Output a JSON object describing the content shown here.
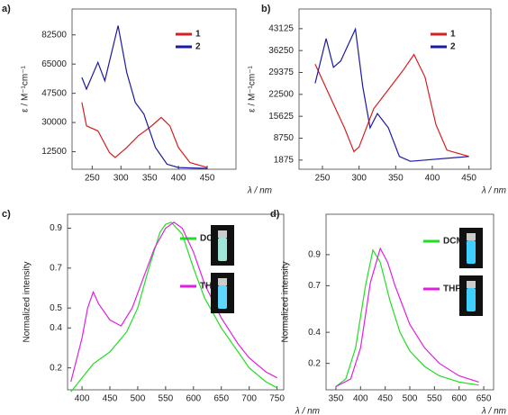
{
  "chart_data": [
    {
      "type": "line",
      "panel_label": "a)",
      "y_label": "ε / M⁻¹cm⁻¹",
      "x_label": "λ / nm",
      "xlim": [
        215,
        500
      ],
      "xticks": [
        250,
        300,
        350,
        400,
        450
      ],
      "ylim": [
        2000,
        98000
      ],
      "yticks": [
        12500,
        30000,
        47500,
        65000,
        82500
      ],
      "series": [
        {
          "name": "1",
          "color": "#d42020",
          "x": [
            232,
            240,
            260,
            280,
            290,
            310,
            330,
            350,
            370,
            385,
            400,
            420,
            450
          ],
          "values": [
            42000,
            28000,
            25000,
            12000,
            9000,
            15000,
            22000,
            27000,
            33000,
            28000,
            15000,
            6000,
            3000
          ]
        },
        {
          "name": "2",
          "color": "#1a1aa0",
          "x": [
            232,
            240,
            260,
            272,
            295,
            310,
            325,
            340,
            360,
            380,
            400,
            450
          ],
          "values": [
            57000,
            50000,
            66000,
            55000,
            88000,
            60000,
            42000,
            35000,
            15000,
            5000,
            3000,
            2500
          ]
        }
      ]
    },
    {
      "type": "line",
      "panel_label": "b)",
      "y_label": "ε / M⁻¹cm⁻¹",
      "x_label": "λ / nm",
      "xlim": [
        218,
        480
      ],
      "xticks": [
        250,
        300,
        350,
        400,
        450
      ],
      "ylim": [
        -1000,
        49300
      ],
      "yticks": [
        1875,
        8750,
        15625,
        22500,
        29375,
        36250,
        43125
      ],
      "series": [
        {
          "name": "1",
          "color": "#d42020",
          "x": [
            240,
            260,
            280,
            293,
            300,
            320,
            340,
            360,
            375,
            390,
            405,
            420,
            450
          ],
          "values": [
            32000,
            22000,
            12000,
            4500,
            6000,
            18000,
            24000,
            30000,
            35000,
            28000,
            13000,
            5000,
            3000
          ]
        },
        {
          "name": "2",
          "color": "#1a1aa0",
          "x": [
            240,
            255,
            265,
            275,
            295,
            305,
            315,
            325,
            340,
            355,
            370,
            450
          ],
          "values": [
            26000,
            40000,
            31000,
            33000,
            43000,
            25000,
            12000,
            16500,
            12000,
            3000,
            1500,
            3000
          ]
        }
      ]
    },
    {
      "type": "line",
      "panel_label": "c)",
      "y_label": "Normalized intensity",
      "x_label": "λ / nm",
      "xlim": [
        374,
        762
      ],
      "xticks": [
        400,
        450,
        500,
        550,
        600,
        650,
        700,
        750
      ],
      "ylim": [
        0.09,
        0.97
      ],
      "yticks": [
        0.2,
        0.4,
        0.5,
        0.7,
        0.9
      ],
      "series": [
        {
          "name": "DCM",
          "color": "#22dd22",
          "x": [
            380,
            400,
            420,
            450,
            480,
            500,
            520,
            540,
            550,
            560,
            580,
            600,
            620,
            650,
            680,
            700,
            730,
            750
          ],
          "values": [
            0.08,
            0.15,
            0.22,
            0.28,
            0.38,
            0.5,
            0.7,
            0.88,
            0.92,
            0.93,
            0.87,
            0.7,
            0.55,
            0.4,
            0.28,
            0.2,
            0.13,
            0.1
          ]
        },
        {
          "name": "THF",
          "color": "#e020e0",
          "x": [
            380,
            400,
            410,
            420,
            430,
            450,
            470,
            490,
            510,
            530,
            550,
            565,
            580,
            600,
            620,
            650,
            680,
            700,
            730,
            750
          ],
          "values": [
            0.13,
            0.35,
            0.5,
            0.58,
            0.52,
            0.44,
            0.41,
            0.5,
            0.65,
            0.8,
            0.9,
            0.93,
            0.9,
            0.78,
            0.62,
            0.45,
            0.32,
            0.25,
            0.18,
            0.15
          ]
        }
      ]
    },
    {
      "type": "line",
      "panel_label": "d)",
      "y_label": "Normalized intensity",
      "x_label": "λ / nm",
      "xlim": [
        330,
        670
      ],
      "xticks": [
        350,
        400,
        450,
        500,
        550,
        600,
        650
      ],
      "ylim": [
        0.03,
        1.16
      ],
      "yticks": [
        0.2,
        0.4,
        0.7,
        0.9
      ],
      "series": [
        {
          "name": "DCM",
          "color": "#22dd22",
          "x": [
            350,
            370,
            390,
            410,
            425,
            440,
            460,
            480,
            500,
            530,
            560,
            600,
            640
          ],
          "values": [
            0.05,
            0.1,
            0.3,
            0.7,
            0.93,
            0.85,
            0.6,
            0.4,
            0.28,
            0.18,
            0.12,
            0.08,
            0.06
          ]
        },
        {
          "name": "THF",
          "color": "#e020e0",
          "x": [
            350,
            380,
            400,
            420,
            440,
            455,
            470,
            500,
            530,
            560,
            600,
            640
          ],
          "values": [
            0.05,
            0.1,
            0.3,
            0.72,
            0.94,
            0.85,
            0.7,
            0.45,
            0.3,
            0.2,
            0.12,
            0.08
          ]
        }
      ]
    }
  ]
}
